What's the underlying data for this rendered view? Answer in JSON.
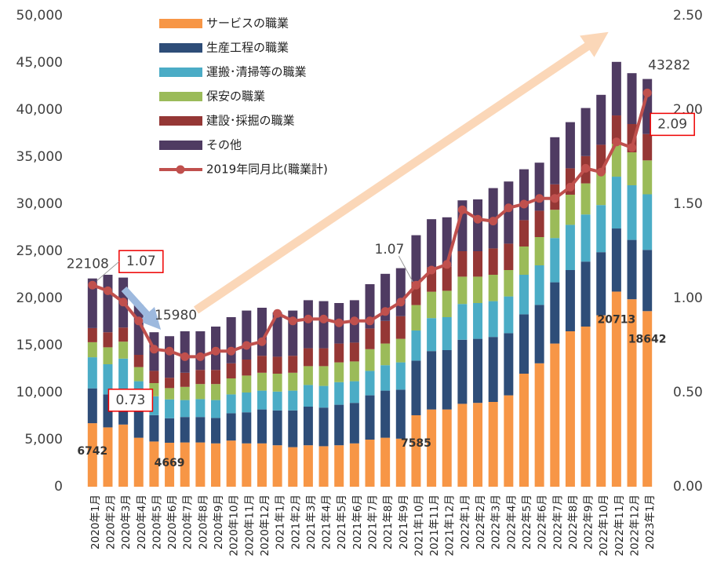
{
  "chart_data": {
    "type": "stacked_bar_line",
    "categories": [
      "2020年1月",
      "2020年2月",
      "2020年3月",
      "2020年4月",
      "2020年5月",
      "2020年6月",
      "2020年7月",
      "2020年8月",
      "2020年9月",
      "2020年10月",
      "2020年11月",
      "2020年12月",
      "2021年1月",
      "2021年2月",
      "2021年3月",
      "2021年4月",
      "2021年5月",
      "2021年6月",
      "2021年7月",
      "2021年8月",
      "2021年9月",
      "2021年10月",
      "2021年11月",
      "2021年12月",
      "2022年1月",
      "2022年2月",
      "2022年3月",
      "2022年4月",
      "2022年5月",
      "2022年6月",
      "2022年7月",
      "2022年8月",
      "2022年9月",
      "2022年10月",
      "2022年11月",
      "2022年12月",
      "2023年1月"
    ],
    "series": [
      {
        "name": "サービスの職業",
        "color": "#f79646",
        "values": [
          6742,
          6300,
          6600,
          5200,
          4800,
          4669,
          4700,
          4700,
          4600,
          4900,
          4600,
          4600,
          4400,
          4200,
          4400,
          4300,
          4400,
          4600,
          5000,
          5200,
          5100,
          7585,
          8200,
          8200,
          8800,
          8900,
          9000,
          9700,
          12000,
          13100,
          15200,
          16500,
          17000,
          18200,
          20713,
          19900,
          18642
        ]
      },
      {
        "name": "生産工程の職業",
        "color": "#2e4d78",
        "values": [
          3700,
          3500,
          3700,
          3300,
          2800,
          2600,
          2700,
          2700,
          2700,
          2900,
          3300,
          3600,
          3700,
          3900,
          4100,
          4100,
          4300,
          4300,
          4700,
          5000,
          5200,
          5800,
          6200,
          6300,
          6800,
          6800,
          6900,
          6600,
          6300,
          6200,
          6500,
          6500,
          6900,
          6700,
          6700,
          6300,
          6500
        ]
      },
      {
        "name": "運搬･清掃等の職業",
        "color": "#4bacc6",
        "values": [
          3300,
          3200,
          3300,
          2700,
          2000,
          2000,
          1800,
          1900,
          1900,
          2000,
          2100,
          2000,
          2000,
          2100,
          2300,
          2300,
          2400,
          2300,
          2600,
          2700,
          2900,
          3200,
          3500,
          3500,
          3800,
          3800,
          3800,
          3900,
          4200,
          4200,
          4700,
          4800,
          5000,
          5000,
          5500,
          5800,
          5900
        ]
      },
      {
        "name": "保安の職業",
        "color": "#9bbb59",
        "values": [
          1600,
          1800,
          1800,
          1500,
          1400,
          1200,
          1400,
          1600,
          1700,
          1700,
          1800,
          1900,
          1900,
          1900,
          2000,
          2100,
          2100,
          2100,
          2300,
          2300,
          2500,
          2700,
          2800,
          2800,
          2900,
          2800,
          2800,
          2800,
          3000,
          3000,
          3000,
          3200,
          3300,
          3400,
          3500,
          3500,
          3600
        ]
      },
      {
        "name": "建設･採掘の職業",
        "color": "#953735",
        "values": [
          1500,
          1600,
          1500,
          1300,
          1300,
          1100,
          1500,
          1500,
          1500,
          1600,
          1700,
          1800,
          1800,
          1800,
          1900,
          1900,
          2000,
          2000,
          2200,
          2400,
          2400,
          2500,
          2600,
          2600,
          2700,
          2700,
          2800,
          2800,
          2800,
          2800,
          2700,
          2800,
          2900,
          3000,
          3000,
          3000,
          2800
        ]
      },
      {
        "name": "その他",
        "color": "#4f3b62",
        "values": [
          5266,
          6100,
          5300,
          5300,
          4100,
          4411,
          4400,
          4100,
          4600,
          4900,
          5200,
          5100,
          4700,
          4800,
          5100,
          5000,
          4300,
          4500,
          4700,
          5000,
          5100,
          4915,
          5100,
          5200,
          5400,
          5500,
          6400,
          6600,
          5400,
          5100,
          5000,
          4900,
          5100,
          5300,
          5687,
          5400,
          5840
        ]
      },
      {
        "name": "2019年同月比(職業計)",
        "color": "#c0504d",
        "axis": "y2",
        "values": [
          1.07,
          1.04,
          0.98,
          0.88,
          0.73,
          0.72,
          0.69,
          0.69,
          0.72,
          0.72,
          0.75,
          0.77,
          0.92,
          0.88,
          0.89,
          0.89,
          0.87,
          0.88,
          0.88,
          0.93,
          0.98,
          1.07,
          1.15,
          1.18,
          1.47,
          1.42,
          1.41,
          1.48,
          1.5,
          1.53,
          1.53,
          1.59,
          1.69,
          1.67,
          1.83,
          1.8,
          2.09
        ]
      }
    ],
    "total_labels": [
      {
        "index": 0,
        "value": 22108
      },
      {
        "index": 5,
        "value": 15980
      },
      {
        "index": 36,
        "value": 43282
      }
    ],
    "labeled_service_points": [
      0,
      5,
      21,
      34,
      36
    ],
    "labeled_line_points": [
      0,
      4,
      21,
      36
    ],
    "boxed_line_points": [
      0,
      4,
      36
    ],
    "ylim": [
      0,
      50000
    ],
    "yticks": [
      0,
      {
        "value": 5000,
        "label": "5,000"
      },
      {
        "value": 10000,
        "label": "10,000"
      },
      {
        "value": 15000,
        "label": "15,000"
      },
      {
        "value": 20000,
        "label": "20,000"
      },
      {
        "value": 25000,
        "label": "25,000"
      },
      {
        "value": 30000,
        "label": "30,000"
      },
      {
        "value": 35000,
        "label": "35,000"
      },
      {
        "value": 40000,
        "label": "40,000"
      },
      {
        "value": 45000,
        "label": "45,000"
      },
      {
        "value": 50000,
        "label": "50,000"
      }
    ],
    "y2lim": [
      0,
      2.5
    ],
    "y2ticks": [
      {
        "value": 0,
        "label": "0.00"
      },
      {
        "value": 0.5,
        "label": "0.50"
      },
      {
        "value": 1,
        "label": "1.00"
      },
      {
        "value": 1.5,
        "label": "1.50"
      },
      {
        "value": 2,
        "label": "2.00"
      },
      {
        "value": 2.5,
        "label": "2.50"
      }
    ],
    "grid": false
  }
}
